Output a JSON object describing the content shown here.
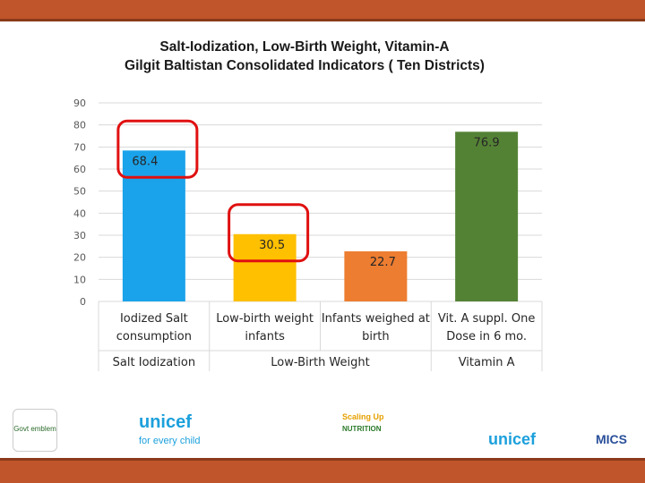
{
  "header": {
    "title_line1": "Salt-Iodization, Low-Birth Weight, Vitamin-A",
    "title_line2": "Gilgit Baltistan Consolidated Indicators ( Ten Districts)"
  },
  "chart_data": {
    "type": "bar",
    "title": "Salt-Iodization, Low-Birth Weight, Vitamin-A Gilgit Baltistan Consolidated Indicators ( Ten Districts)",
    "categories": [
      [
        "Iodized Salt",
        "consumption"
      ],
      [
        "Low-birth weight",
        "infants"
      ],
      [
        "Infants weighed at",
        "birth"
      ],
      [
        "Vit. A suppl. One",
        "Dose in 6 mo."
      ]
    ],
    "groups": [
      {
        "label": "Salt Iodization",
        "span": [
          0,
          0
        ]
      },
      {
        "label": "Low-Birth Weight",
        "span": [
          1,
          2
        ]
      },
      {
        "label": "Vitamin A",
        "span": [
          3,
          3
        ]
      }
    ],
    "values": [
      68.4,
      30.5,
      22.7,
      76.9
    ],
    "data_labels": [
      "68.4",
      "30.5",
      "22.7",
      "76.9"
    ],
    "colors": [
      "#1aa3ea",
      "#ffc000",
      "#ed7d31",
      "#548235"
    ],
    "highlighted": [
      0,
      1
    ],
    "highlight_color": "#e01010",
    "ylim": [
      0,
      90
    ],
    "yticks": [
      0,
      10,
      20,
      30,
      40,
      50,
      60,
      70,
      80,
      90
    ],
    "grid": true
  },
  "footer": {
    "gov_logo": "Govt emblem",
    "unicef_left": "unicef",
    "unicef_tag": "for every child",
    "sun_name": "Scaling Up",
    "sun_sub": "NUTRITION",
    "unicef_right": "unicef",
    "mics": "MICS"
  }
}
